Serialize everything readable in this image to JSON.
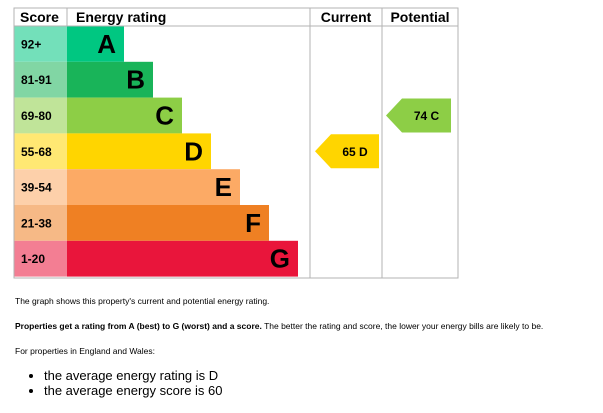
{
  "chart_data": {
    "type": "table",
    "headers": {
      "score": "Score",
      "rating": "Energy rating",
      "current": "Current",
      "potential": "Potential"
    },
    "bands": [
      {
        "score": "92+",
        "letter": "A",
        "color": "#00c781"
      },
      {
        "score": "81-91",
        "letter": "B",
        "color": "#19b459"
      },
      {
        "score": "69-80",
        "letter": "C",
        "color": "#8dce46"
      },
      {
        "score": "55-68",
        "letter": "D",
        "color": "#ffd500"
      },
      {
        "score": "39-54",
        "letter": "E",
        "color": "#fcaa65"
      },
      {
        "score": "21-38",
        "letter": "F",
        "color": "#ef8023"
      },
      {
        "score": "1-20",
        "letter": "G",
        "color": "#e9153b"
      }
    ],
    "current": {
      "value": 65,
      "letter": "D",
      "label": "65  D",
      "color": "#ffd500"
    },
    "potential": {
      "value": 74,
      "letter": "C",
      "label": "74  C",
      "color": "#8dce46"
    }
  },
  "text": {
    "line1": "The graph shows this property's current and potential energy rating.",
    "line2_bold": "Properties get a rating from A (best) to G (worst) and a score.",
    "line2_rest": " The better the rating and score, the lower your energy bills are likely to be.",
    "line3": "For properties in England and Wales:",
    "bullet1": "the average energy rating is D",
    "bullet2": "the average energy score is 60"
  }
}
